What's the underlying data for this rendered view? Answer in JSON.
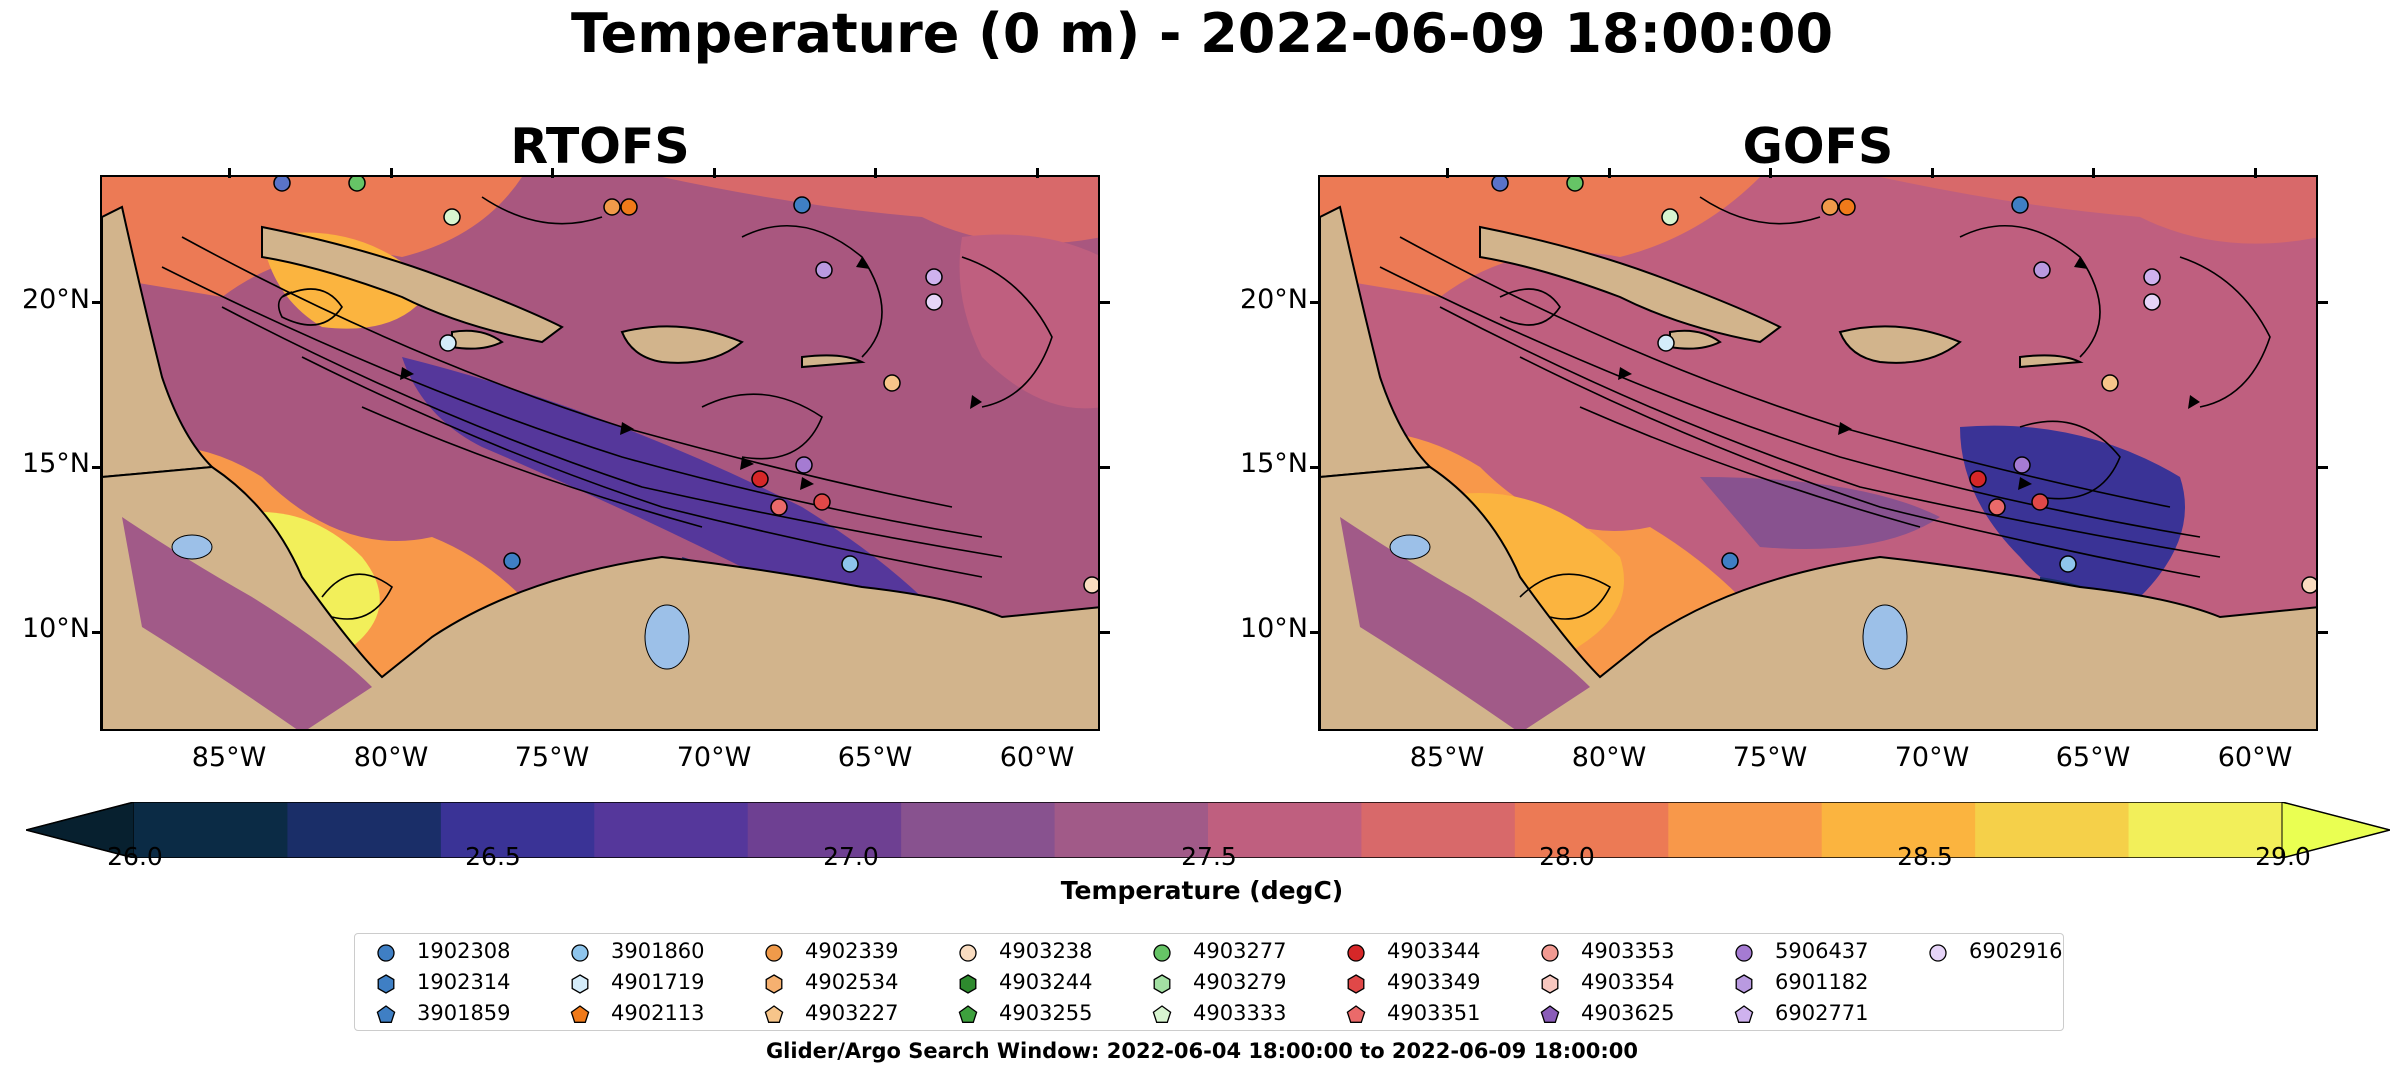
{
  "title": "Temperature (0 m) - 2022-06-09 18:00:00",
  "panels": [
    {
      "name": "RTOFS"
    },
    {
      "name": "GOFS"
    }
  ],
  "lat_ticks": [
    "20°N",
    "15°N",
    "10°N"
  ],
  "lon_ticks": [
    "85°W",
    "80°W",
    "75°W",
    "70°W",
    "65°W",
    "60°W"
  ],
  "colorbar": {
    "label": "Temperature (degC)",
    "ticks": [
      "26.0",
      "26.5",
      "27.0",
      "27.5",
      "28.0",
      "28.5",
      "29.0"
    ],
    "colors": [
      "#0b2b45",
      "#1a2e68",
      "#3a3396",
      "#55379b",
      "#6e4092",
      "#88528f",
      "#a15a88",
      "#bf5f7f",
      "#d8696a",
      "#ec7a55",
      "#f8984a",
      "#fbb43f",
      "#f5d049",
      "#f2ef5a"
    ],
    "under_color": "#07202f",
    "over_color": "#eaff52"
  },
  "map_colors": {
    "land": "#d2b48c",
    "lakes": "#9cc0e8",
    "ocean_base": "#a9577f"
  },
  "legend": {
    "items": [
      {
        "id": "1902308",
        "marker": "circle",
        "color": "#3f7fc4"
      },
      {
        "id": "1902314",
        "marker": "hexagon",
        "color": "#3f7fc4"
      },
      {
        "id": "3901859",
        "marker": "pentagon",
        "color": "#3f7fc4"
      },
      {
        "id": "3901860",
        "marker": "circle",
        "color": "#8ec5ec"
      },
      {
        "id": "4901719",
        "marker": "hexagon",
        "color": "#d4ecfa"
      },
      {
        "id": "4902113",
        "marker": "pentagon",
        "color": "#f07a1a"
      },
      {
        "id": "4902339",
        "marker": "circle",
        "color": "#f09a4a"
      },
      {
        "id": "4902534",
        "marker": "hexagon",
        "color": "#f5b070"
      },
      {
        "id": "4903227",
        "marker": "pentagon",
        "color": "#f7c58a"
      },
      {
        "id": "4903238",
        "marker": "circle",
        "color": "#f9dcc0"
      },
      {
        "id": "4903244",
        "marker": "hexagon",
        "color": "#2e8a2e"
      },
      {
        "id": "4903255",
        "marker": "pentagon",
        "color": "#3da03d"
      },
      {
        "id": "4903277",
        "marker": "circle",
        "color": "#66c466"
      },
      {
        "id": "4903279",
        "marker": "hexagon",
        "color": "#a3e0a3"
      },
      {
        "id": "4903333",
        "marker": "pentagon",
        "color": "#d8f5d0"
      },
      {
        "id": "4903344",
        "marker": "circle",
        "color": "#d62728"
      },
      {
        "id": "4903349",
        "marker": "hexagon",
        "color": "#e04848"
      },
      {
        "id": "4903351",
        "marker": "pentagon",
        "color": "#ea6a6a"
      },
      {
        "id": "4903353",
        "marker": "circle",
        "color": "#f29a92"
      },
      {
        "id": "4903354",
        "marker": "hexagon",
        "color": "#f8c8c0"
      },
      {
        "id": "4903625",
        "marker": "pentagon",
        "color": "#8a5cb8"
      },
      {
        "id": "5906437",
        "marker": "circle",
        "color": "#a57bd2"
      },
      {
        "id": "6901182",
        "marker": "hexagon",
        "color": "#b99ae0"
      },
      {
        "id": "6902771",
        "marker": "pentagon",
        "color": "#cfb2ee"
      },
      {
        "id": "6902916",
        "marker": "circle",
        "color": "#e6d4f8"
      }
    ]
  },
  "footnote": "Glider/Argo Search Window: 2022-06-04 18:00:00 to 2022-06-09 18:00:00"
}
